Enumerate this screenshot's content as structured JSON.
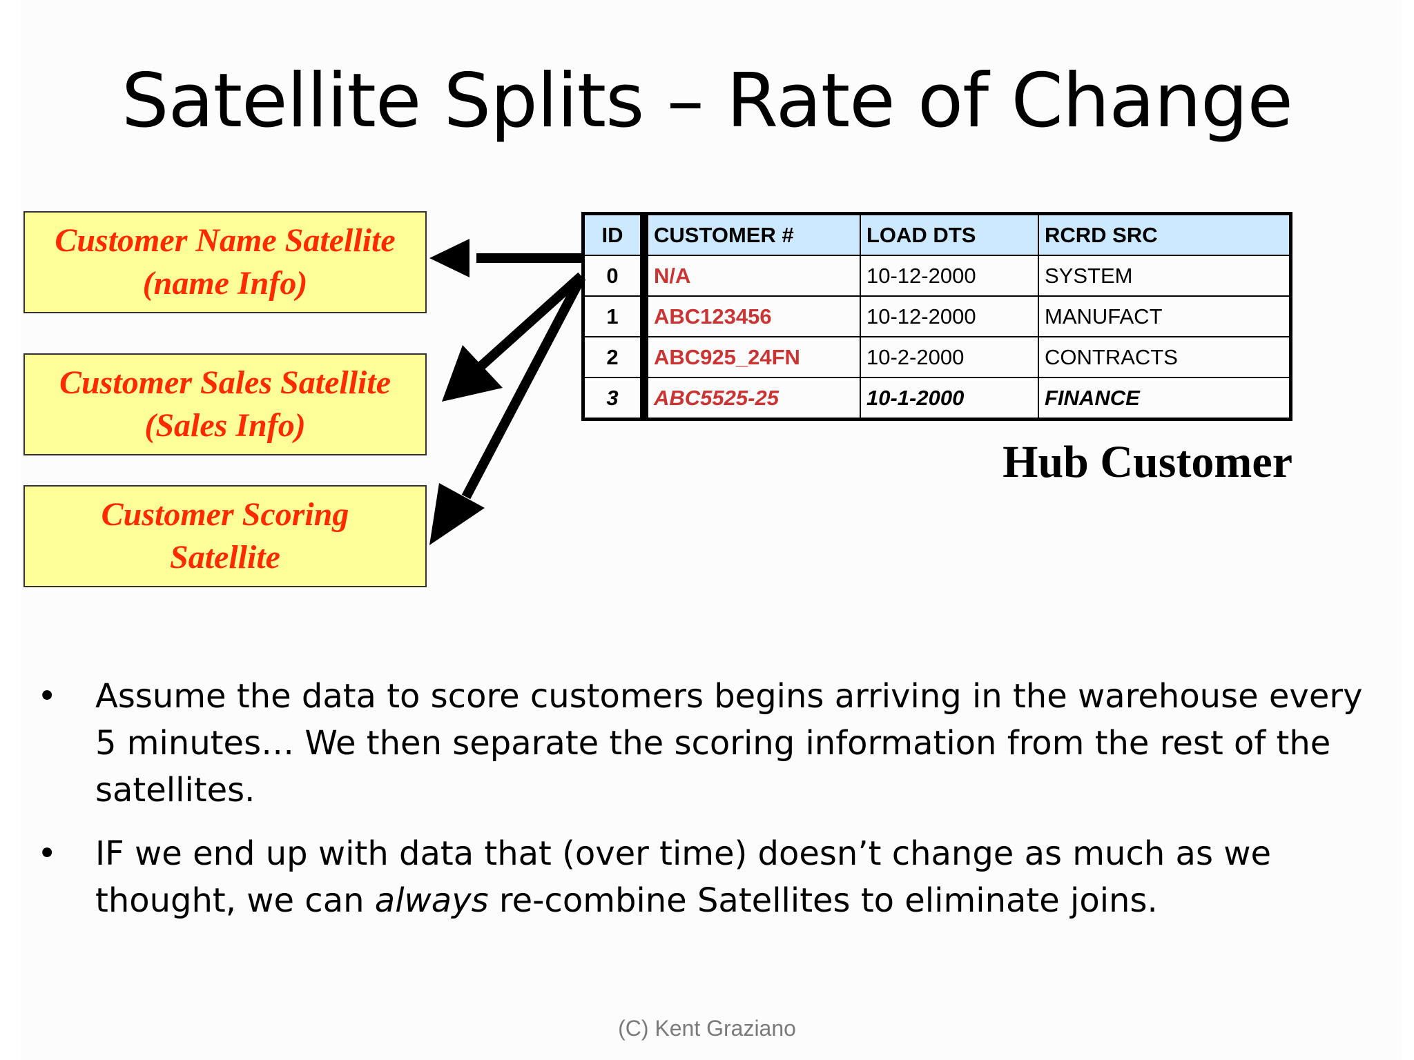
{
  "slide": {
    "title": "Satellite Splits – Rate of Change",
    "satellites": [
      {
        "line1": "Customer Name Satellite",
        "line2": "(name Info)"
      },
      {
        "line1": "Customer Sales Satellite",
        "line2": "(Sales Info)"
      },
      {
        "line1": "Customer Scoring",
        "line2": "Satellite"
      }
    ],
    "hub_table": {
      "headers": [
        "ID",
        "CUSTOMER #",
        "LOAD DTS",
        "RCRD SRC"
      ],
      "rows": [
        [
          "0",
          "N/A",
          "10-12-2000",
          "SYSTEM"
        ],
        [
          "1",
          "ABC123456",
          "10-12-2000",
          "MANUFACT"
        ],
        [
          "2",
          "ABC925_24FN",
          "10-2-2000",
          "CONTRACTS"
        ],
        [
          "3",
          "ABC5525-25",
          "10-1-2000",
          "FINANCE"
        ]
      ]
    },
    "hub_label": "Hub Customer",
    "bullets": [
      {
        "symbol": "•",
        "text": "Assume the data to score customers begins arriving in the warehouse every 5 minutes… We then separate the scoring information from the rest of the satellites."
      },
      {
        "symbol": "•",
        "text_before": "IF we end up with data that (over time) doesn’t change as much as we thought, we can ",
        "text_em": "always",
        "text_after": " re-combine Satellites to eliminate joins."
      }
    ],
    "footer": "(C) Kent Graziano",
    "colors": {
      "satellite_fill": "#ffff99",
      "satellite_text": "#ff2a00",
      "table_header_fill": "#cce9ff",
      "customer_id_text": "#cc3333"
    }
  }
}
